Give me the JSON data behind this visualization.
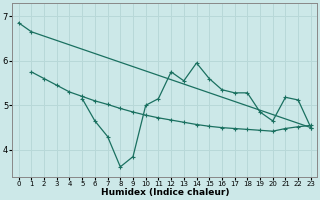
{
  "xlabel": "Humidex (Indice chaleur)",
  "background_color": "#cce8e8",
  "grid_color": "#b8d8d8",
  "line_color": "#1a7060",
  "spine_color": "#888888",
  "xlim": [
    -0.5,
    23.5
  ],
  "ylim": [
    3.4,
    7.3
  ],
  "yticks": [
    4,
    5,
    6,
    7
  ],
  "xticks": [
    0,
    1,
    2,
    3,
    4,
    5,
    6,
    7,
    8,
    9,
    10,
    11,
    12,
    13,
    14,
    15,
    16,
    17,
    18,
    19,
    20,
    21,
    22,
    23
  ],
  "line1_x": [
    0,
    1,
    23
  ],
  "line1_y": [
    6.85,
    6.65,
    4.5
  ],
  "line2_x": [
    1,
    2,
    3,
    4,
    5,
    6,
    7,
    8,
    9,
    10,
    11,
    12,
    13,
    14,
    15,
    16,
    17,
    18,
    19,
    20,
    21,
    22,
    23
  ],
  "line2_y": [
    5.75,
    5.6,
    5.45,
    5.3,
    5.2,
    5.1,
    5.02,
    4.93,
    4.85,
    4.78,
    4.72,
    4.67,
    4.62,
    4.57,
    4.53,
    4.5,
    4.48,
    4.46,
    4.44,
    4.42,
    4.48,
    4.52,
    4.55
  ],
  "line3_x": [
    5,
    6,
    7,
    8,
    9,
    10,
    11,
    12,
    13,
    14,
    15,
    16,
    17,
    18,
    19,
    20,
    21,
    22,
    23
  ],
  "line3_y": [
    5.15,
    4.65,
    4.3,
    3.62,
    3.85,
    5.0,
    5.15,
    5.75,
    5.55,
    5.95,
    5.6,
    5.35,
    5.28,
    5.28,
    4.85,
    4.65,
    5.18,
    5.12,
    4.5
  ],
  "xlabel_fontsize": 6.5,
  "tick_fontsize_x": 5.0,
  "tick_fontsize_y": 6.0,
  "linewidth": 0.9,
  "markersize": 2.5,
  "marker_ew": 0.8
}
